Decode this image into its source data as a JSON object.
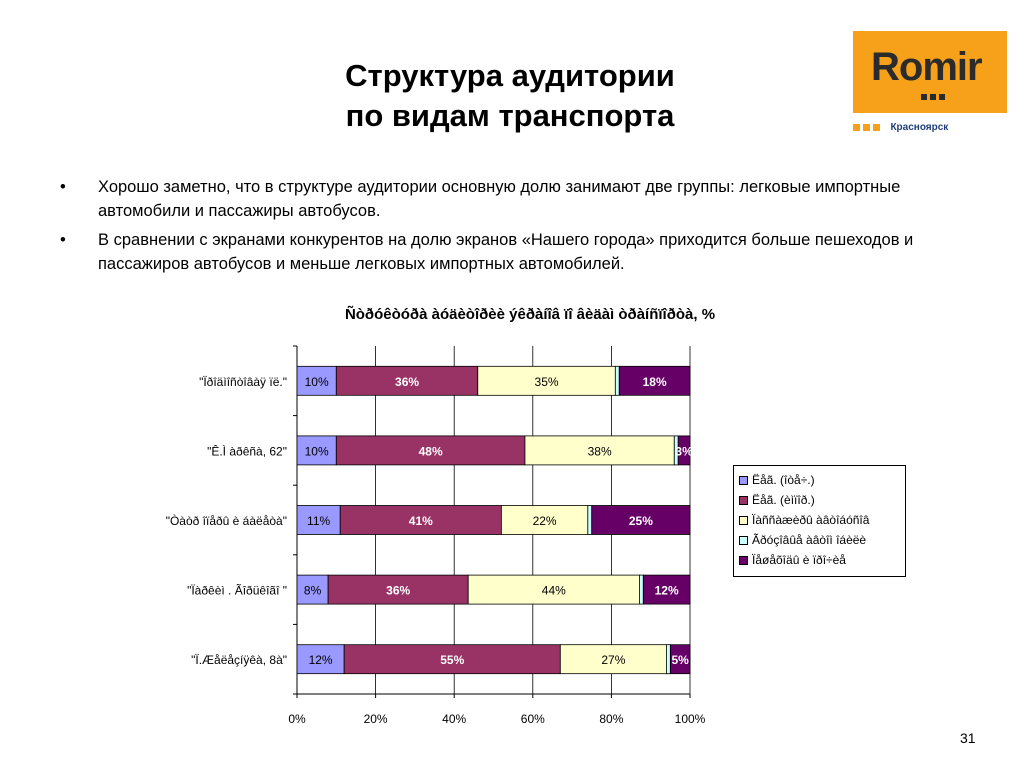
{
  "slide": {
    "title_line1": "Структура аудитории",
    "title_line2": "по видам транспорта",
    "page_number": "31"
  },
  "logo": {
    "brand": "Romir",
    "city": "Красноярск",
    "bg_color": "#f7a11a"
  },
  "bullets": [
    {
      "marker": "•",
      "text": "Хорошо заметно, что в структуре аудитории основную долю занимают две группы: легковые импортные автомобили и пассажиры автобусов."
    },
    {
      "marker": "•",
      "text": "В сравнении с экранами конкурентов на долю экранов «Нашего города» приходится больше пешеходов и пассажиров автобусов и меньше легковых импортных автомобилей."
    }
  ],
  "chart_data": {
    "type": "bar",
    "orientation": "horizontal",
    "stacked": "percent",
    "title": "Ñòðóêòóðà àóäèòîðèè ýêðàíîâ ïî âèäàì òðàíñïîðòà, %",
    "categories": [
      "\"Ïðîäìîñòîâàÿ ïë.\"",
      "\"Ê.Ì àðêñà, 62\"",
      "\"Òàòð îïåðû è áàëåòà\"",
      "\"Ïàðêèì . Ãîðüêîãî \"",
      "\"Ï.Æåëåçíÿêà, 8à\""
    ],
    "xlim": [
      0,
      100
    ],
    "x_ticks": [
      "0%",
      "20%",
      "40%",
      "60%",
      "80%",
      "100%"
    ],
    "grid": true,
    "legend_position": "right",
    "series": [
      {
        "name": "Ëåã. (îòå÷.)",
        "color": "#9999ff",
        "values": [
          10,
          10,
          11,
          8,
          12
        ],
        "labels": [
          "10%",
          "10%",
          "11%",
          "8%",
          "12%"
        ]
      },
      {
        "name": "Ëåã. (èìïîð.)",
        "color": "#993366",
        "values": [
          36,
          48,
          41,
          36,
          55
        ],
        "labels": [
          "36%",
          "48%",
          "41%",
          "36%",
          "55%"
        ]
      },
      {
        "name": "Ïàññàæèðû àâòîáóñîâ",
        "color": "#ffffcc",
        "values": [
          35,
          38,
          22,
          44,
          27
        ],
        "labels": [
          "35%",
          "38%",
          "22%",
          "44%",
          "27%"
        ]
      },
      {
        "name": "Ãðóçîâûå àâòîì îáèëè",
        "color": "#ccffff",
        "values": [
          1,
          1,
          1,
          1,
          1
        ],
        "labels": [
          "",
          "",
          "",
          "",
          ""
        ]
      },
      {
        "name": "Ïåøåõîäû è ïðî÷èå",
        "color": "#660066",
        "values": [
          18,
          3,
          25,
          12,
          5
        ],
        "labels": [
          "18%",
          "3%",
          "25%",
          "12%",
          "5%"
        ]
      }
    ]
  }
}
